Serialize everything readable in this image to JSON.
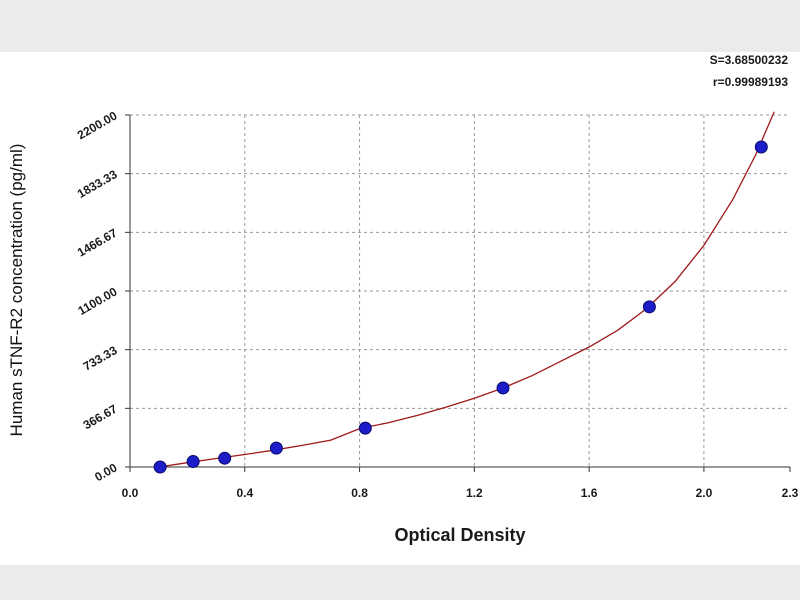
{
  "chart_data": {
    "type": "scatter",
    "title": "",
    "xlabel": "Optical Density",
    "ylabel": "Human sTNF-R2 concentration (pg/ml)",
    "xlim": [
      0.0,
      2.3
    ],
    "ylim": [
      0.0,
      2200.0
    ],
    "x_ticks": [
      0.0,
      0.4,
      0.8,
      1.2,
      1.6,
      2.0,
      2.3
    ],
    "x_tick_labels": [
      "0.0",
      "0.4",
      "0.8",
      "1.2",
      "1.6",
      "2.0",
      "2.3"
    ],
    "y_ticks": [
      0.0,
      366.67,
      733.33,
      1100.0,
      1466.67,
      1833.33,
      2200.0
    ],
    "y_tick_labels": [
      "0.00",
      "366.67",
      "733.33",
      "1100.00",
      "1466.67",
      "1833.33",
      "2200.00"
    ],
    "grid": true,
    "series": [
      {
        "points": [
          {
            "x": 0.105,
            "y": 0
          },
          {
            "x": 0.22,
            "y": 34
          },
          {
            "x": 0.33,
            "y": 55
          },
          {
            "x": 0.51,
            "y": 118
          },
          {
            "x": 0.82,
            "y": 243
          },
          {
            "x": 1.3,
            "y": 494
          },
          {
            "x": 1.81,
            "y": 1001
          },
          {
            "x": 2.2,
            "y": 2000
          }
        ]
      }
    ],
    "fit_curve": {
      "points": [
        {
          "x": 0.1,
          "y": 0
        },
        {
          "x": 0.2,
          "y": 27
        },
        {
          "x": 0.3,
          "y": 53
        },
        {
          "x": 0.4,
          "y": 78
        },
        {
          "x": 0.5,
          "y": 105
        },
        {
          "x": 0.6,
          "y": 135
        },
        {
          "x": 0.7,
          "y": 168
        },
        {
          "x": 0.8,
          "y": 240
        },
        {
          "x": 0.9,
          "y": 277
        },
        {
          "x": 1.0,
          "y": 322
        },
        {
          "x": 1.1,
          "y": 373
        },
        {
          "x": 1.2,
          "y": 430
        },
        {
          "x": 1.3,
          "y": 494
        },
        {
          "x": 1.4,
          "y": 570
        },
        {
          "x": 1.5,
          "y": 660
        },
        {
          "x": 1.6,
          "y": 750
        },
        {
          "x": 1.7,
          "y": 855
        },
        {
          "x": 1.8,
          "y": 990
        },
        {
          "x": 1.9,
          "y": 1160
        },
        {
          "x": 2.0,
          "y": 1385
        },
        {
          "x": 2.1,
          "y": 1670
        },
        {
          "x": 2.18,
          "y": 1950
        },
        {
          "x": 2.245,
          "y": 2220
        }
      ]
    },
    "annotations": [
      "S=3.68500232",
      "r=0.99989193"
    ]
  },
  "colors": {
    "curve": "#a01818",
    "point_fill": "#1c1cc8",
    "point_edge": "#0a0a6a",
    "grid": "#9a9a9a",
    "axis": "#333333",
    "page": "#ffffff",
    "frame_bg": "#ebebeb"
  }
}
